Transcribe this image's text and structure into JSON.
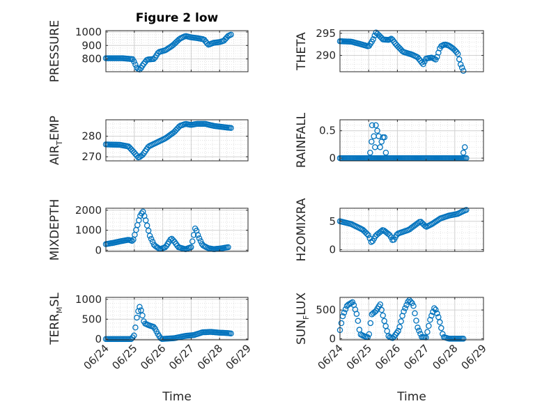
{
  "title": "Figure 2 low",
  "colors": {
    "marker": "#0072BD",
    "axis": "#262626",
    "grid": "#c8c8c8",
    "background": "#ffffff"
  },
  "chart_data": [
    {
      "type": "scatter",
      "ylabel": {
        "base": "PRESSURE",
        "sub": ""
      },
      "xlabel": "",
      "ylim": [
        705,
        1010
      ],
      "yticks": [
        800,
        900,
        1000
      ],
      "xlim": [
        0,
        5
      ],
      "xticks": [],
      "grid": true,
      "marker": "open-circle",
      "keyframes": [
        [
          0,
          805
        ],
        [
          0.6,
          805
        ],
        [
          0.95,
          798
        ],
        [
          1.1,
          730
        ],
        [
          1.2,
          720
        ],
        [
          1.3,
          755
        ],
        [
          1.45,
          795
        ],
        [
          1.7,
          800
        ],
        [
          1.85,
          850
        ],
        [
          2.1,
          865
        ],
        [
          2.35,
          900
        ],
        [
          2.6,
          950
        ],
        [
          2.8,
          970
        ],
        [
          3.0,
          960
        ],
        [
          3.2,
          955
        ],
        [
          3.45,
          945
        ],
        [
          3.6,
          905
        ],
        [
          3.8,
          920
        ],
        [
          4.0,
          925
        ],
        [
          4.15,
          935
        ],
        [
          4.3,
          970
        ],
        [
          4.4,
          980
        ]
      ],
      "samples": 90
    },
    {
      "type": "scatter",
      "ylabel": {
        "base": "THETA",
        "sub": ""
      },
      "xlabel": "",
      "ylim": [
        286.3,
        295.6
      ],
      "yticks": [
        290,
        295
      ],
      "xlim": [
        0,
        5
      ],
      "xticks": [],
      "grid": true,
      "marker": "open-circle",
      "keyframes": [
        [
          0,
          293.2
        ],
        [
          0.4,
          293.1
        ],
        [
          0.8,
          292.4
        ],
        [
          1.0,
          292.0
        ],
        [
          1.15,
          293.5
        ],
        [
          1.25,
          295.2
        ],
        [
          1.35,
          294.6
        ],
        [
          1.5,
          293.6
        ],
        [
          1.7,
          293.5
        ],
        [
          1.8,
          293.8
        ],
        [
          1.95,
          292.5
        ],
        [
          2.2,
          290.8
        ],
        [
          2.5,
          290.2
        ],
        [
          2.7,
          289.6
        ],
        [
          2.8,
          288.8
        ],
        [
          2.9,
          288.0
        ],
        [
          3.0,
          289.3
        ],
        [
          3.2,
          289.5
        ],
        [
          3.35,
          289.0
        ],
        [
          3.5,
          292.0
        ],
        [
          3.65,
          292.5
        ],
        [
          3.8,
          292.2
        ],
        [
          3.95,
          291.5
        ],
        [
          4.1,
          290.5
        ],
        [
          4.2,
          288.0
        ],
        [
          4.3,
          286.5
        ]
      ],
      "samples": 90
    },
    {
      "type": "scatter",
      "ylabel": {
        "base": "AIR",
        "sub": "T",
        "suffix": "EMP"
      },
      "xlabel": "",
      "ylim": [
        268,
        288
      ],
      "yticks": [
        270,
        280
      ],
      "xlim": [
        0,
        5
      ],
      "xticks": [],
      "grid": true,
      "marker": "open-circle",
      "keyframes": [
        [
          0,
          276
        ],
        [
          0.5,
          275.8
        ],
        [
          0.8,
          275
        ],
        [
          1.0,
          272
        ],
        [
          1.15,
          269.5
        ],
        [
          1.3,
          271
        ],
        [
          1.5,
          275
        ],
        [
          1.8,
          277
        ],
        [
          2.1,
          279
        ],
        [
          2.4,
          282
        ],
        [
          2.6,
          285
        ],
        [
          2.8,
          286
        ],
        [
          3.0,
          285.5
        ],
        [
          3.2,
          286
        ],
        [
          3.5,
          286
        ],
        [
          3.8,
          285
        ],
        [
          4.1,
          284.5
        ],
        [
          4.4,
          284
        ]
      ],
      "samples": 90
    },
    {
      "type": "scatter",
      "ylabel": {
        "base": "RAINFALL",
        "sub": ""
      },
      "xlabel": "",
      "ylim": [
        -0.05,
        0.7
      ],
      "yticks": [
        0,
        0.5
      ],
      "xlim": [
        0,
        5
      ],
      "xticks": [],
      "grid": true,
      "marker": "open-circle",
      "keyframes": [
        [
          0,
          0
        ],
        [
          4.4,
          0
        ]
      ],
      "samples": 90,
      "extra_points": [
        [
          1.05,
          0.1
        ],
        [
          1.1,
          0.3
        ],
        [
          1.12,
          0.6
        ],
        [
          1.18,
          0.4
        ],
        [
          1.22,
          0.2
        ],
        [
          1.25,
          0.6
        ],
        [
          1.3,
          0.5
        ],
        [
          1.35,
          0.4
        ],
        [
          1.4,
          0.2
        ],
        [
          1.45,
          0.3
        ],
        [
          1.5,
          0.38
        ],
        [
          1.55,
          0.38
        ],
        [
          1.6,
          0.1
        ],
        [
          4.3,
          0.1
        ],
        [
          4.35,
          0.2
        ]
      ]
    },
    {
      "type": "scatter",
      "ylabel": {
        "base": "MIXDEPTH",
        "sub": ""
      },
      "xlabel": "",
      "ylim": [
        -60,
        2100
      ],
      "yticks": [
        0,
        1000,
        2000
      ],
      "xlim": [
        0,
        5
      ],
      "xticks": [],
      "grid": true,
      "marker": "open-circle",
      "keyframes": [
        [
          0,
          300
        ],
        [
          0.3,
          380
        ],
        [
          0.6,
          470
        ],
        [
          0.8,
          520
        ],
        [
          0.95,
          450
        ],
        [
          1.1,
          1200
        ],
        [
          1.2,
          1700
        ],
        [
          1.3,
          1950
        ],
        [
          1.4,
          1500
        ],
        [
          1.55,
          700
        ],
        [
          1.7,
          250
        ],
        [
          1.9,
          50
        ],
        [
          2.1,
          150
        ],
        [
          2.3,
          600
        ],
        [
          2.4,
          450
        ],
        [
          2.55,
          150
        ],
        [
          2.8,
          50
        ],
        [
          3.0,
          150
        ],
        [
          3.15,
          1150
        ],
        [
          3.25,
          700
        ],
        [
          3.4,
          250
        ],
        [
          3.6,
          100
        ],
        [
          3.8,
          50
        ],
        [
          4.1,
          100
        ],
        [
          4.3,
          150
        ]
      ],
      "samples": 90
    },
    {
      "type": "scatter",
      "ylabel": {
        "base": "H2OMIXRA",
        "sub": ""
      },
      "xlabel": "",
      "ylim": [
        -0.3,
        7.3
      ],
      "yticks": [
        0,
        5
      ],
      "xlim": [
        0,
        5
      ],
      "xticks": [],
      "grid": true,
      "marker": "open-circle",
      "keyframes": [
        [
          0,
          5
        ],
        [
          0.4,
          4.5
        ],
        [
          0.8,
          3.5
        ],
        [
          1.0,
          2.5
        ],
        [
          1.1,
          1.2
        ],
        [
          1.25,
          2.5
        ],
        [
          1.5,
          3.5
        ],
        [
          1.75,
          2.5
        ],
        [
          1.85,
          1.5
        ],
        [
          2.0,
          2.8
        ],
        [
          2.4,
          3.5
        ],
        [
          2.8,
          5.0
        ],
        [
          3.0,
          4.0
        ],
        [
          3.2,
          4.5
        ],
        [
          3.5,
          5.5
        ],
        [
          3.8,
          6.0
        ],
        [
          4.1,
          6.3
        ],
        [
          4.3,
          6.8
        ],
        [
          4.4,
          7.0
        ]
      ],
      "samples": 90
    },
    {
      "type": "scatter",
      "ylabel": {
        "base": "TERR",
        "sub": "M",
        "suffix": "SL"
      },
      "xlabel": "Time",
      "ylim": [
        -20,
        1050
      ],
      "yticks": [
        0,
        500,
        1000
      ],
      "xlim": [
        0,
        5
      ],
      "xticks": [
        "06/24",
        "06/25",
        "06/26",
        "06/27",
        "06/28",
        "06/29"
      ],
      "grid": true,
      "marker": "open-circle",
      "keyframes": [
        [
          0,
          0
        ],
        [
          0.9,
          0
        ],
        [
          1.0,
          100
        ],
        [
          1.1,
          600
        ],
        [
          1.18,
          820
        ],
        [
          1.25,
          700
        ],
        [
          1.35,
          400
        ],
        [
          1.5,
          350
        ],
        [
          1.7,
          300
        ],
        [
          1.85,
          100
        ],
        [
          1.95,
          0
        ],
        [
          2.4,
          20
        ],
        [
          2.8,
          80
        ],
        [
          3.1,
          100
        ],
        [
          3.4,
          170
        ],
        [
          3.7,
          180
        ],
        [
          4.0,
          160
        ],
        [
          4.3,
          150
        ],
        [
          4.4,
          140
        ]
      ],
      "samples": 90
    },
    {
      "type": "scatter",
      "ylabel": {
        "base": "SUN",
        "sub": "F",
        "suffix": "LUX"
      },
      "xlabel": "Time",
      "ylim": [
        -20,
        720
      ],
      "yticks": [
        0,
        500
      ],
      "xlim": [
        0,
        5
      ],
      "xticks": [
        "06/24",
        "06/25",
        "06/26",
        "06/27",
        "06/28",
        "06/29"
      ],
      "grid": true,
      "marker": "open-circle",
      "keyframes": [
        [
          0,
          150
        ],
        [
          0.1,
          400
        ],
        [
          0.25,
          580
        ],
        [
          0.45,
          640
        ],
        [
          0.6,
          400
        ],
        [
          0.7,
          80
        ],
        [
          0.85,
          40
        ],
        [
          1.0,
          20
        ],
        [
          1.1,
          420
        ],
        [
          1.25,
          480
        ],
        [
          1.4,
          600
        ],
        [
          1.55,
          300
        ],
        [
          1.7,
          30
        ],
        [
          1.85,
          10
        ],
        [
          2.05,
          150
        ],
        [
          2.2,
          450
        ],
        [
          2.4,
          680
        ],
        [
          2.55,
          600
        ],
        [
          2.7,
          200
        ],
        [
          2.85,
          30
        ],
        [
          3.0,
          20
        ],
        [
          3.15,
          350
        ],
        [
          3.3,
          550
        ],
        [
          3.45,
          350
        ],
        [
          3.6,
          30
        ],
        [
          3.8,
          0
        ],
        [
          4.3,
          0
        ]
      ],
      "samples": 90
    }
  ]
}
